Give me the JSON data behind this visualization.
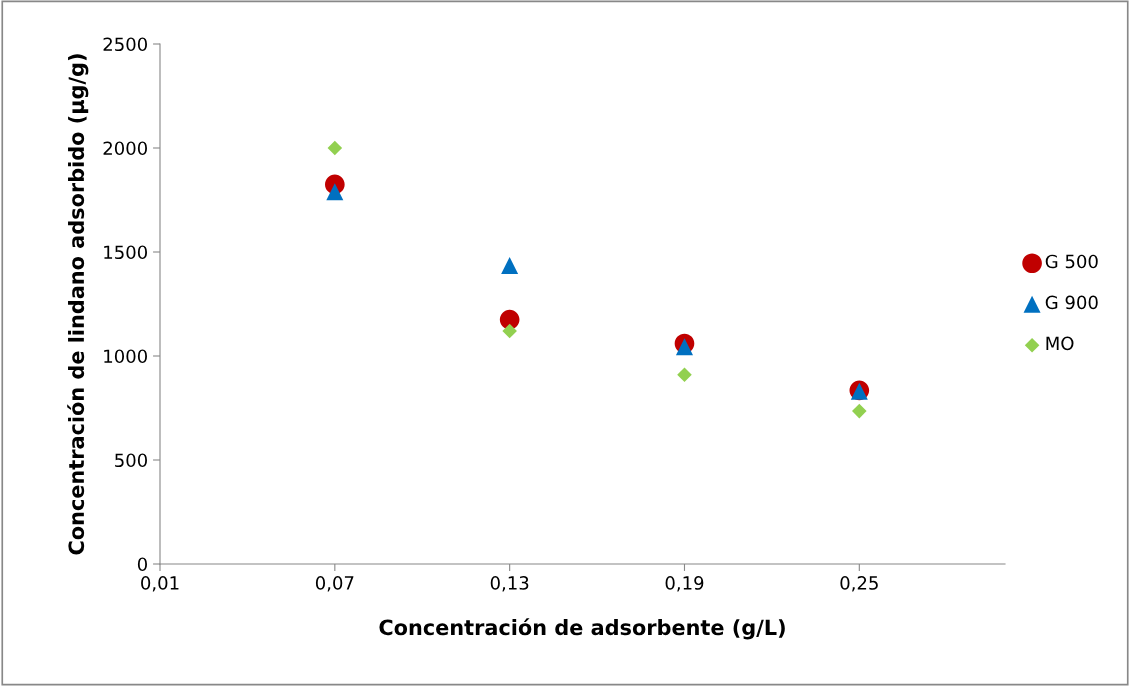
{
  "chart_data": {
    "type": "scatter",
    "xlabel": "Concentración de adsorbente (g/L)",
    "ylabel": "Concentración de lindano adsorbido (µg/g)",
    "x": [
      0.07,
      0.13,
      0.19,
      0.25
    ],
    "series": [
      {
        "name": "G 500",
        "color": "#c00000",
        "marker": "circle",
        "values": [
          1825,
          1175,
          1060,
          835
        ]
      },
      {
        "name": "G 900",
        "color": "#0070c0",
        "marker": "triangle",
        "values": [
          1790,
          1435,
          1045,
          830
        ]
      },
      {
        "name": "MO",
        "color": "#92d050",
        "marker": "diamond",
        "values": [
          2000,
          1120,
          910,
          735
        ]
      }
    ],
    "xlim": [
      0.01,
      0.3
    ],
    "xticks": [
      {
        "value": 0.01,
        "label": "0,01"
      },
      {
        "value": 0.07,
        "label": "0,07"
      },
      {
        "value": 0.13,
        "label": "0,13"
      },
      {
        "value": 0.19,
        "label": "0,19"
      },
      {
        "value": 0.25,
        "label": "0,25"
      }
    ],
    "ylim": [
      0,
      2500
    ],
    "yticks": [
      0,
      500,
      1000,
      1500,
      2000,
      2500
    ],
    "grid": false,
    "legend": "right"
  }
}
